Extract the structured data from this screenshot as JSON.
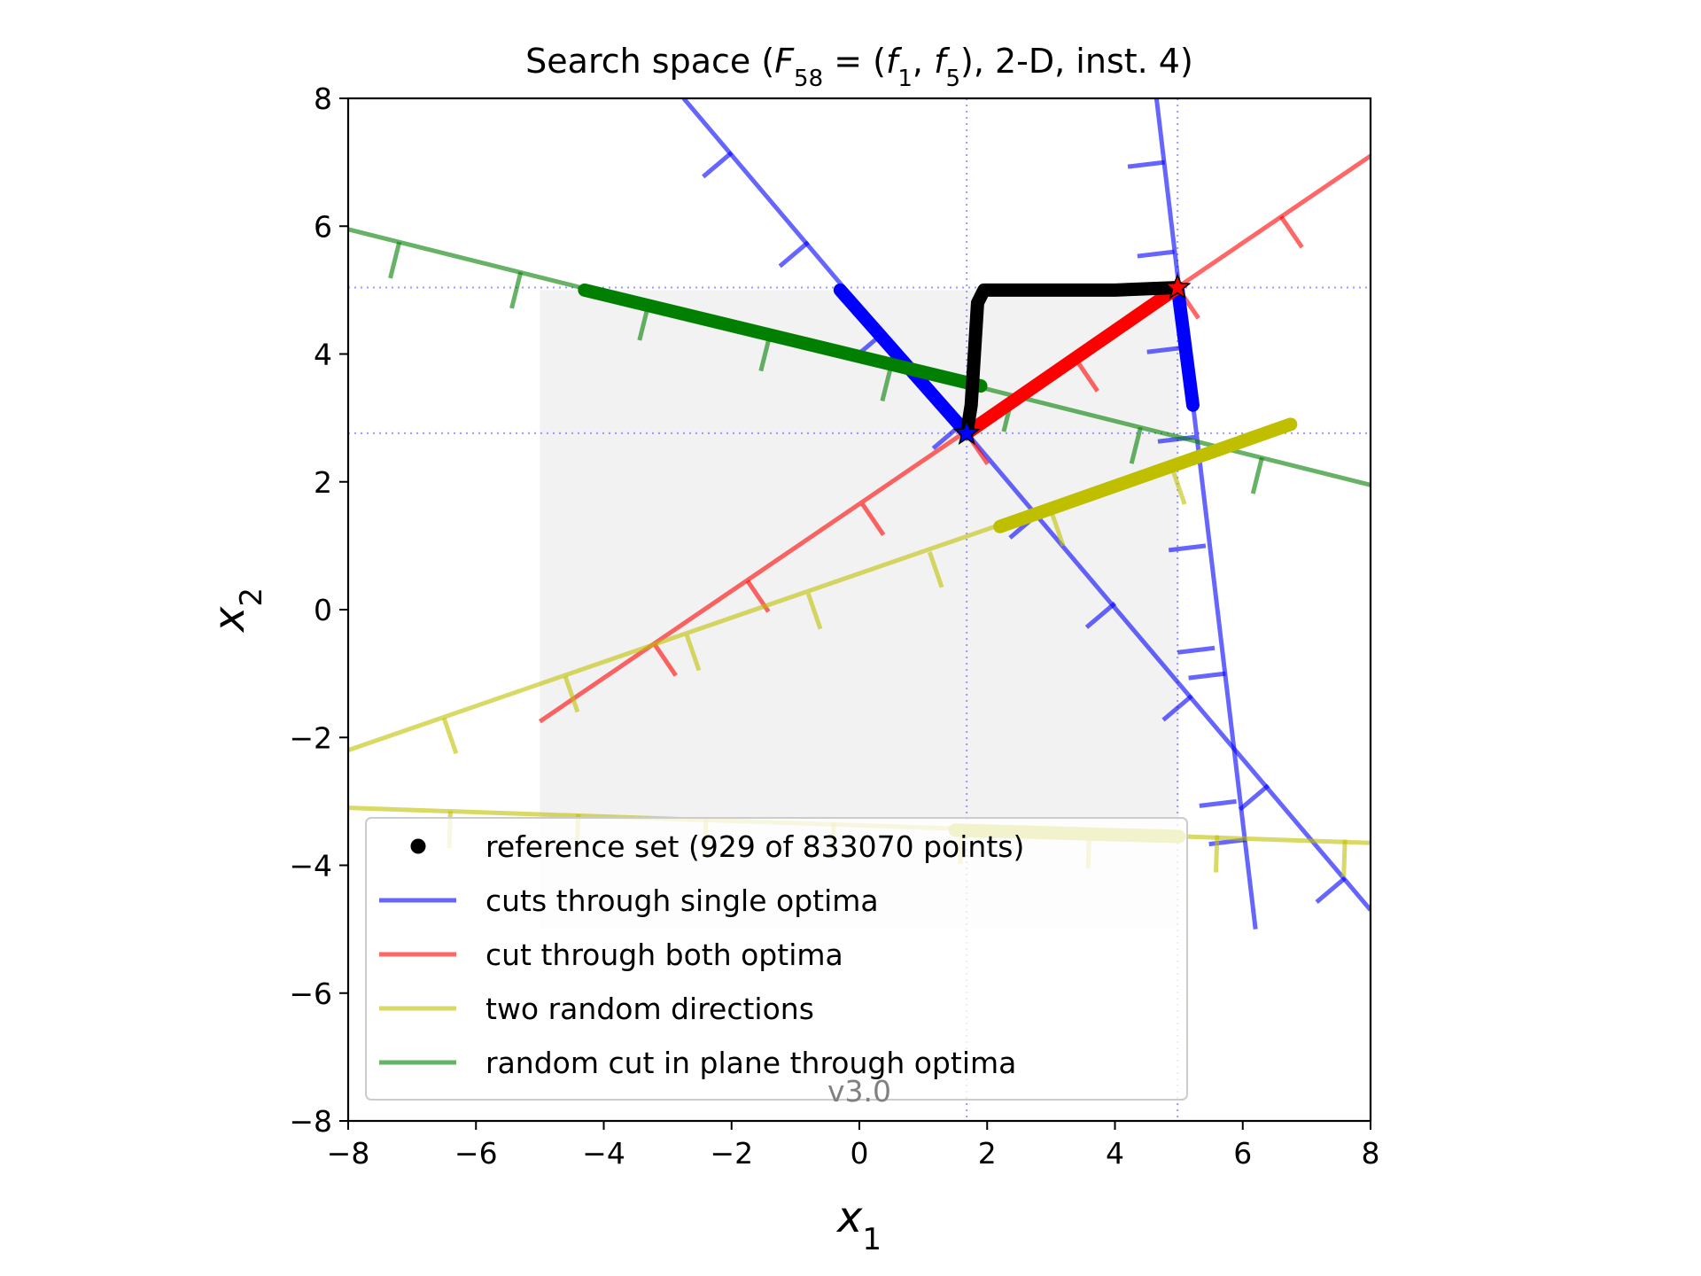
{
  "chart_data": {
    "type": "line",
    "title": {
      "prefix": "Search space (",
      "func": "F",
      "func_sub": "58",
      "eq": " = (",
      "f1": "f",
      "f1_sub": "1",
      "comma": ", ",
      "f2": "f",
      "f2_sub": "5",
      "suffix": "), 2-D, inst. 4)"
    },
    "xlabel": {
      "base": "x",
      "sub": "1"
    },
    "ylabel": {
      "base": "x",
      "sub": "2"
    },
    "xlim": [
      -8,
      8
    ],
    "ylim": [
      -8,
      8
    ],
    "xticks": [
      -8,
      -6,
      -4,
      -2,
      0,
      2,
      4,
      6,
      8
    ],
    "yticks": [
      -8,
      -6,
      -4,
      -2,
      0,
      2,
      4,
      6,
      8
    ],
    "tick_labels": [
      "−8",
      "−6",
      "−4",
      "−2",
      "0",
      "2",
      "4",
      "6",
      "8"
    ],
    "grid": false,
    "region_of_interest": {
      "x": [
        -5,
        5
      ],
      "y": [
        -5,
        5
      ],
      "color": "#f2f2f2"
    },
    "optima": [
      {
        "x": 1.68,
        "y": 2.76,
        "color": "#0000ff"
      },
      {
        "x": 4.98,
        "y": 5.04,
        "color": "#ff0000"
      }
    ],
    "reference_set": [
      [
        1.68,
        2.76
      ],
      [
        1.75,
        3.2
      ],
      [
        1.8,
        4.0
      ],
      [
        1.85,
        4.8
      ],
      [
        1.95,
        5.0
      ],
      [
        3.0,
        5.0
      ],
      [
        4.0,
        5.0
      ],
      [
        4.98,
        5.04
      ]
    ],
    "series": [
      {
        "name": "cuts through single optima",
        "color": "#0000ff",
        "line": [
          [
            -2.75,
            8
          ],
          [
            8,
            -4.7
          ]
        ],
        "highlight": [
          [
            -0.3,
            5.0
          ],
          [
            1.68,
            2.76
          ]
        ],
        "ticks": [
          [
            -2.0,
            7.15
          ],
          [
            -0.8,
            5.75
          ],
          [
            0.4,
            4.35
          ],
          [
            1.6,
            2.9
          ],
          [
            2.8,
            1.5
          ],
          [
            4.0,
            0.1
          ],
          [
            5.2,
            -1.35
          ],
          [
            6.4,
            -2.75
          ],
          [
            7.6,
            -4.2
          ]
        ]
      },
      {
        "name": "cuts through single optima",
        "color": "#0000ff",
        "line": [
          [
            4.65,
            8
          ],
          [
            6.2,
            -5
          ]
        ],
        "highlight": [
          [
            4.98,
            5.04
          ],
          [
            5.22,
            3.2
          ]
        ],
        "ticks": [
          [
            4.78,
            7.0
          ],
          [
            4.93,
            5.6
          ],
          [
            5.08,
            4.1
          ],
          [
            5.25,
            2.7
          ],
          [
            5.42,
            1.0
          ],
          [
            5.56,
            -0.6
          ],
          [
            5.73,
            -1.0
          ],
          [
            5.9,
            -3.0
          ],
          [
            6.05,
            -3.6
          ]
        ]
      },
      {
        "name": "cut through both optima",
        "color": "#ff0000",
        "line": [
          [
            -5.0,
            -1.75
          ],
          [
            8,
            7.1
          ]
        ],
        "highlight": [
          [
            1.68,
            2.76
          ],
          [
            4.98,
            5.04
          ]
        ],
        "ticks": [
          [
            -3.2,
            -0.55
          ],
          [
            -1.75,
            0.45
          ],
          [
            0.05,
            1.65
          ],
          [
            1.68,
            2.76
          ],
          [
            3.4,
            3.9
          ],
          [
            4.98,
            5.04
          ],
          [
            6.6,
            6.15
          ]
        ]
      },
      {
        "name": "two random directions",
        "color": "#bfbf00",
        "line": [
          [
            -8,
            -2.2
          ],
          [
            6.75,
            2.9
          ]
        ],
        "highlight": [
          [
            2.2,
            1.3
          ],
          [
            6.75,
            2.9
          ]
        ],
        "ticks": [
          [
            -6.5,
            -1.7
          ],
          [
            -4.6,
            -1.05
          ],
          [
            -2.7,
            -0.4
          ],
          [
            -0.8,
            0.25
          ],
          [
            1.1,
            0.9
          ],
          [
            3.0,
            1.55
          ],
          [
            4.9,
            2.2
          ]
        ]
      },
      {
        "name": "two random directions",
        "color": "#bfbf00",
        "line": [
          [
            -8,
            -3.1
          ],
          [
            8,
            -3.65
          ]
        ],
        "highlight": [
          [
            1.5,
            -3.45
          ],
          [
            5.0,
            -3.55
          ]
        ],
        "ticks": [
          [
            -6.4,
            -3.15
          ],
          [
            -4.4,
            -3.2
          ],
          [
            -2.4,
            -3.27
          ],
          [
            -0.4,
            -3.33
          ],
          [
            1.6,
            -3.4
          ],
          [
            3.6,
            -3.47
          ],
          [
            5.6,
            -3.53
          ],
          [
            7.6,
            -3.6
          ]
        ]
      },
      {
        "name": "random cut in plane through optima",
        "color": "#007f00",
        "line": [
          [
            -8,
            5.95
          ],
          [
            8,
            1.95
          ]
        ],
        "highlight": [
          [
            -4.3,
            5.0
          ],
          [
            1.9,
            3.5
          ]
        ],
        "ticks": [
          [
            -7.2,
            5.75
          ],
          [
            -5.3,
            5.28
          ],
          [
            -3.3,
            4.78
          ],
          [
            -1.4,
            4.3
          ],
          [
            0.5,
            3.83
          ],
          [
            2.4,
            3.35
          ],
          [
            4.4,
            2.85
          ],
          [
            6.3,
            2.38
          ]
        ]
      }
    ],
    "legend": {
      "placement": "lower-left",
      "entries": [
        {
          "label": "reference set (929 of 833070 points)",
          "marker": "dot",
          "color": "#000000"
        },
        {
          "label": "cuts through single optima",
          "marker": "line",
          "color": "#0000ff"
        },
        {
          "label": "cut through both optima",
          "marker": "line",
          "color": "#ff0000"
        },
        {
          "label": "two random directions",
          "marker": "line",
          "color": "#bfbf00"
        },
        {
          "label": "random cut in plane through optima",
          "marker": "line",
          "color": "#007f00"
        }
      ]
    },
    "version_label": "v3.0"
  }
}
